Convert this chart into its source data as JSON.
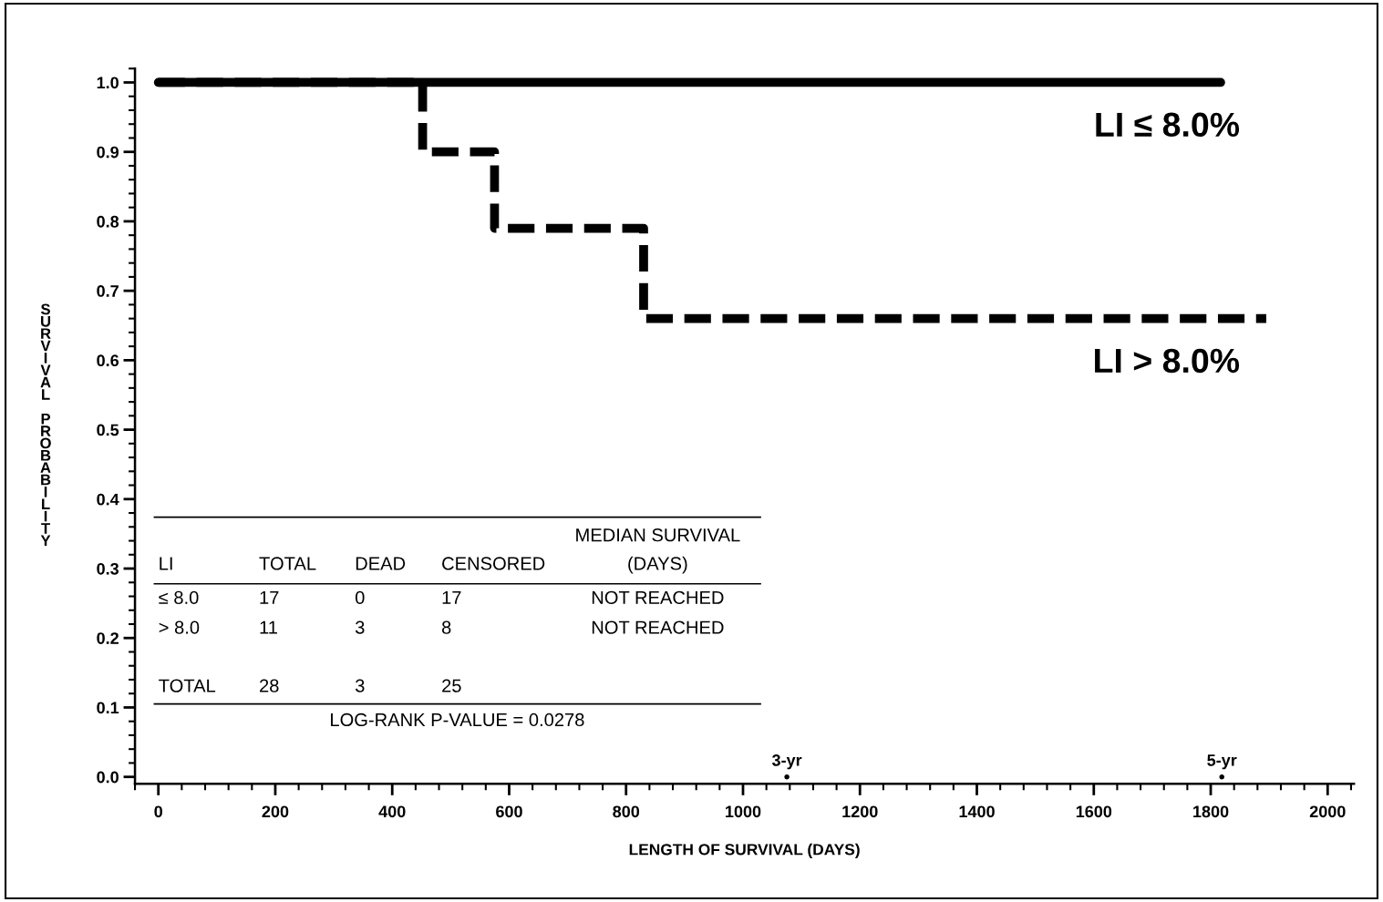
{
  "chart_data": {
    "type": "step",
    "xlabel": "LENGTH OF SURVIVAL (DAYS)",
    "ylabel": "SURVIVAL PROBABILITY",
    "xlim": [
      -40,
      2045
    ],
    "ylim": [
      -0.01,
      1.02
    ],
    "xticks": [
      0,
      200,
      400,
      600,
      800,
      1000,
      1200,
      1400,
      1600,
      1800,
      2000
    ],
    "yticks": [
      {
        "value": 0,
        "label": "0.0"
      },
      {
        "value": 0.1,
        "label": "0.1"
      },
      {
        "value": 0.2,
        "label": "0.2"
      },
      {
        "value": 0.3,
        "label": "0.3"
      },
      {
        "value": 0.4,
        "label": "0.4"
      },
      {
        "value": 0.5,
        "label": "0.5"
      },
      {
        "value": 0.6,
        "label": "0.6"
      },
      {
        "value": 0.7,
        "label": "0.7"
      },
      {
        "value": 0.8,
        "label": "0.8"
      },
      {
        "value": 0.9,
        "label": "0.9"
      },
      {
        "value": 1,
        "label": "1.0"
      }
    ],
    "grid": false,
    "legend": false,
    "series": [
      {
        "name": "LI ≤ 8.0%",
        "color": "#000000",
        "line_style": "solid",
        "x": [
          0,
          1817
        ],
        "values": [
          1,
          1
        ]
      },
      {
        "name": "LI > 8.0%",
        "color": "#000000",
        "line_style": "dashed",
        "x": [
          0,
          452,
          575,
          830,
          1895
        ],
        "values": [
          1,
          0.9,
          0.79,
          0.66,
          0.66
        ]
      }
    ],
    "annotations": [
      "MEDIAN SURVIVAL",
      "LI",
      "TOTAL",
      "DEAD",
      "CENSORED",
      "(DAYS)",
      "≤ 8.0",
      "17",
      "0",
      "17",
      "NOT REACHED",
      "> 8.0",
      "11",
      "3",
      "8",
      "NOT REACHED",
      "TOTAL",
      "28",
      "3",
      "25",
      "LOG-RANK P-VALUE = 0.0278",
      {
        "text": "3-yr",
        "x": 1075,
        "y": 0
      },
      {
        "text": "5-yr",
        "x": 1819,
        "y": 0
      }
    ]
  }
}
